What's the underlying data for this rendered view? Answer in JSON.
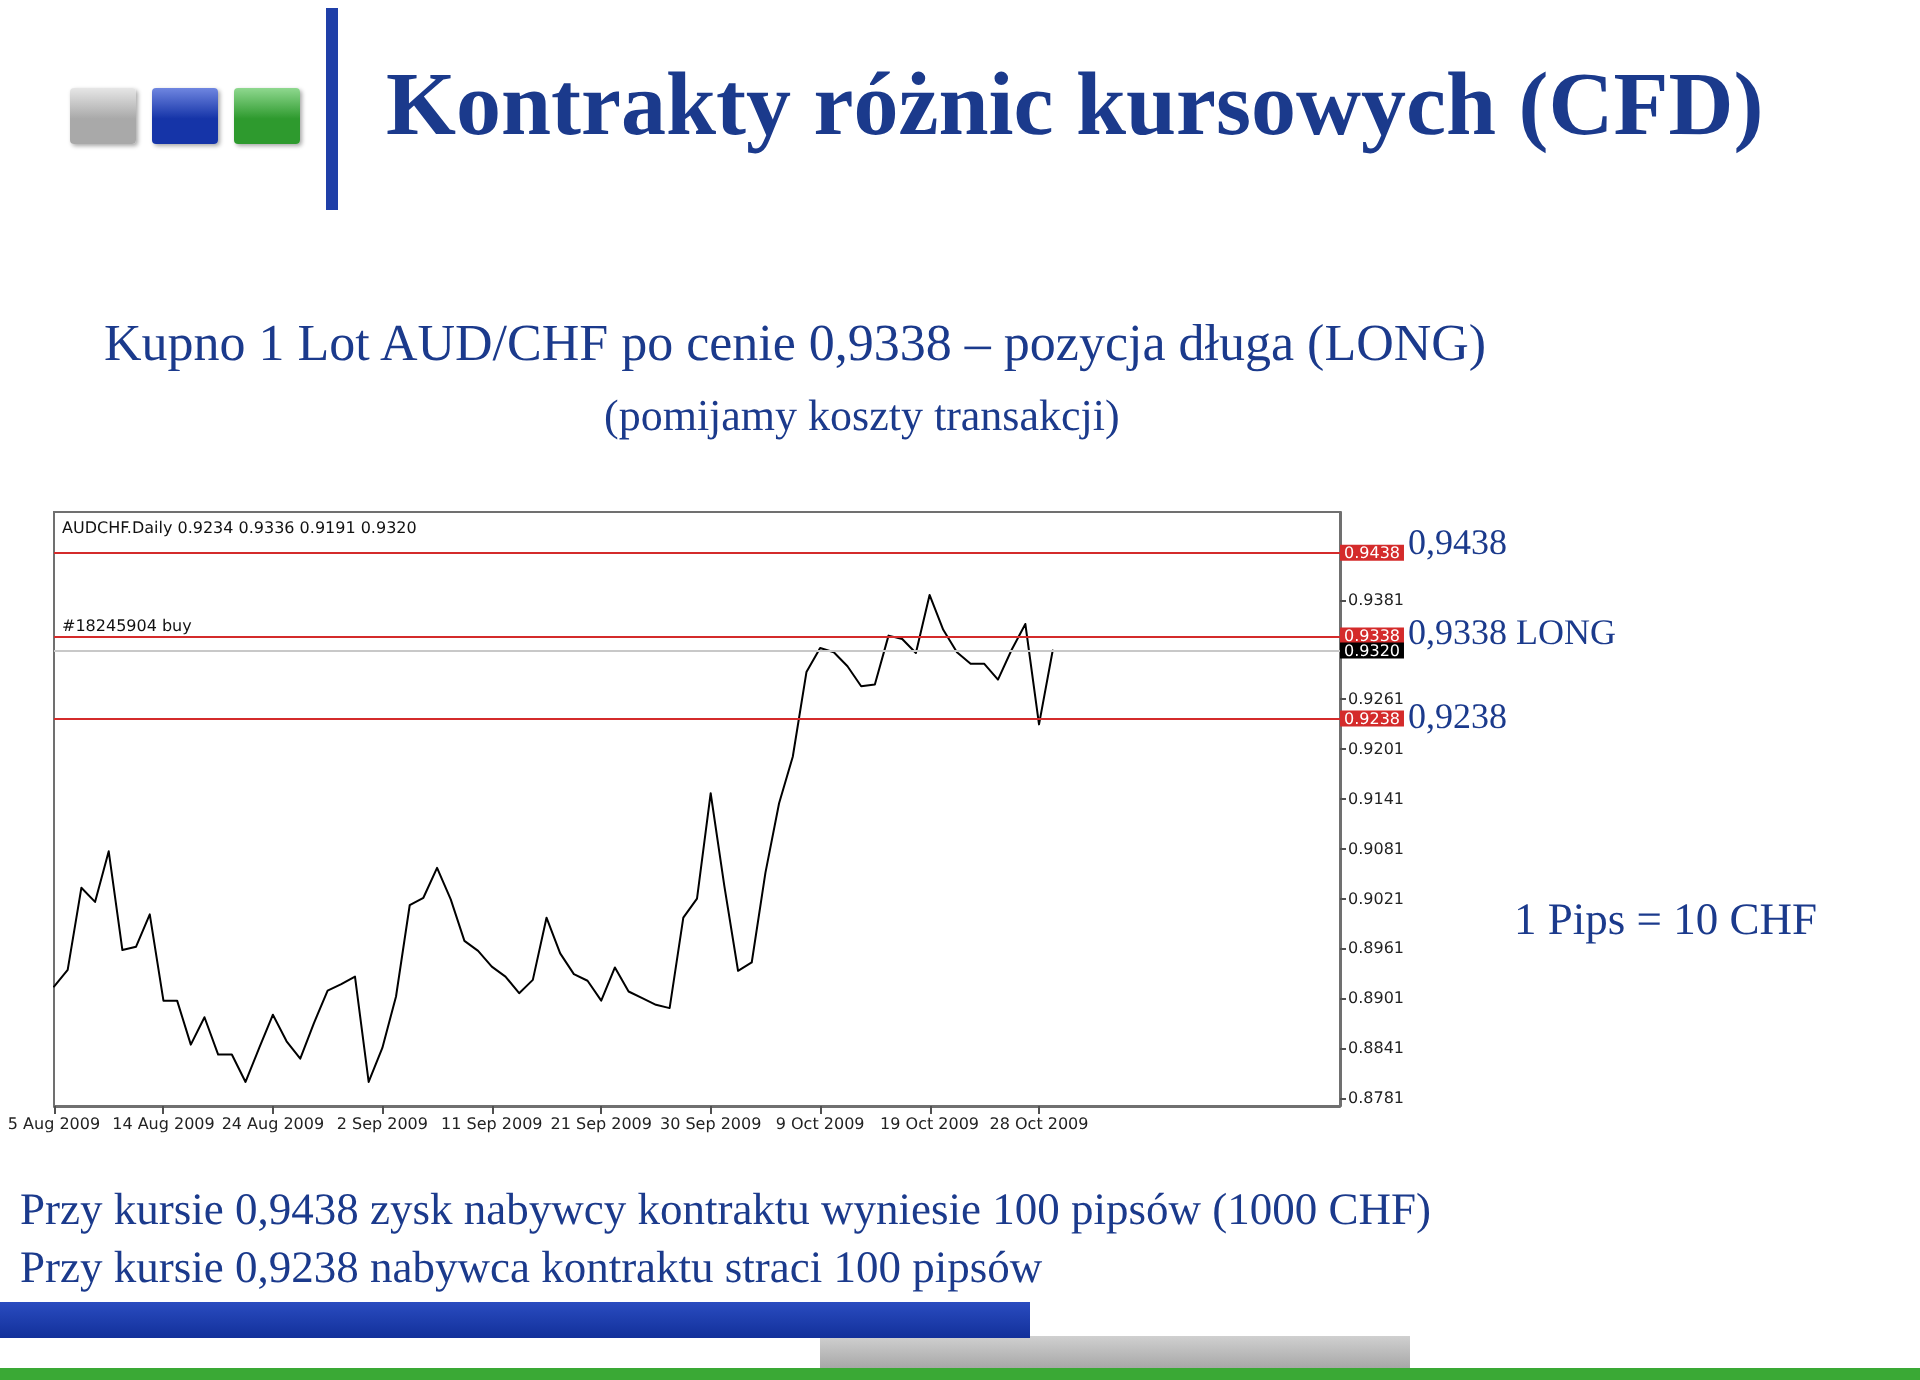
{
  "chart_data": {
    "type": "line",
    "title": "Kontrakty różnic kursowych (CFD)",
    "subtitle": "Kupno 1 Lot AUD/CHF po cenie 0,9338 – pozycja długa (LONG)",
    "annotations": [
      "(pomijamy koszty transakcji)",
      "AUDCHF.Daily 0.9234 0.9336 0.9191 0.9320",
      "0,9438",
      {
        "text": "#18245904 buy",
        "y": 0.9338
      },
      "0,9338 LONG",
      "0,9238",
      "1 Pips = 10 CHF",
      "Przy kursie 0,9438 zysk nabywcy kontraktu wyniesie 100 pipsów (1000 CHF)",
      "Przy kursie 0,9238 nabywca kontraktu straci 100 pipsów"
    ],
    "categories": [
      "5 Aug 2009",
      null,
      null,
      null,
      null,
      null,
      null,
      null,
      "14 Aug 2009",
      null,
      null,
      null,
      null,
      null,
      null,
      null,
      "24 Aug 2009",
      null,
      null,
      null,
      null,
      null,
      null,
      null,
      "2 Sep 2009",
      null,
      null,
      null,
      null,
      null,
      null,
      null,
      "11 Sep 2009",
      null,
      null,
      null,
      null,
      null,
      null,
      null,
      "21 Sep 2009",
      null,
      null,
      null,
      null,
      null,
      null,
      null,
      "30 Sep 2009",
      null,
      null,
      null,
      null,
      null,
      null,
      null,
      "9 Oct 2009",
      null,
      null,
      null,
      null,
      null,
      null,
      null,
      "19 Oct 2009",
      null,
      null,
      null,
      null,
      null,
      null,
      null,
      "28 Oct 2009",
      null,
      null,
      null,
      null,
      null,
      null,
      null,
      null,
      null,
      null,
      null,
      null,
      null,
      null,
      null,
      null,
      null,
      null,
      null,
      null,
      null,
      null
    ],
    "values": [
      0.8915,
      0.8935,
      0.9034,
      0.9017,
      0.9078,
      0.8959,
      0.8963,
      0.9002,
      0.8898,
      0.8898,
      0.8845,
      0.8878,
      0.8833,
      0.8833,
      0.88,
      0.8841,
      0.8881,
      0.8849,
      0.8828,
      0.8871,
      0.891,
      0.8918,
      0.8927,
      0.88,
      0.8841,
      0.8903,
      0.9013,
      0.9022,
      0.9058,
      0.902,
      0.897,
      0.8958,
      0.8939,
      0.8927,
      0.8907,
      0.8923,
      0.8998,
      0.8955,
      0.893,
      0.8922,
      0.8898,
      0.8938,
      0.8909,
      0.8901,
      0.8893,
      0.8889,
      0.8998,
      0.9021,
      0.9148,
      0.9036,
      0.8934,
      0.8944,
      0.9052,
      0.9136,
      0.9192,
      0.9294,
      0.9323,
      0.9318,
      0.9301,
      0.9277,
      0.9279,
      0.9338,
      0.9334,
      0.9317,
      0.9387,
      0.9345,
      0.9318,
      0.9304,
      0.9304,
      0.9285,
      0.9321,
      0.9352,
      0.9231,
      0.932,
      null,
      null,
      null,
      null,
      null,
      null,
      null,
      null,
      null,
      null,
      null,
      null,
      null,
      null,
      null,
      null,
      null,
      null,
      null,
      null,
      null
    ],
    "color": "#000000",
    "ylim": [
      0.8771,
      0.9487
    ],
    "yticks": [
      0.8781,
      0.8841,
      0.8901,
      0.8961,
      0.9021,
      0.9081,
      0.9141,
      0.9201,
      0.9261,
      0.9381
    ],
    "ref_lines": [
      {
        "axis": "y",
        "value": 0.9438,
        "label": "0.9438",
        "color": "#d42b2b"
      },
      {
        "axis": "y",
        "value": 0.9338,
        "label": "0.9338",
        "color": "#d42b2b"
      },
      {
        "axis": "y",
        "value": 0.9238,
        "label": "0.9238",
        "color": "#d42b2b"
      },
      {
        "axis": "y",
        "value": 0.932,
        "label": "0.9320",
        "color": "#c8c8c8"
      }
    ]
  }
}
